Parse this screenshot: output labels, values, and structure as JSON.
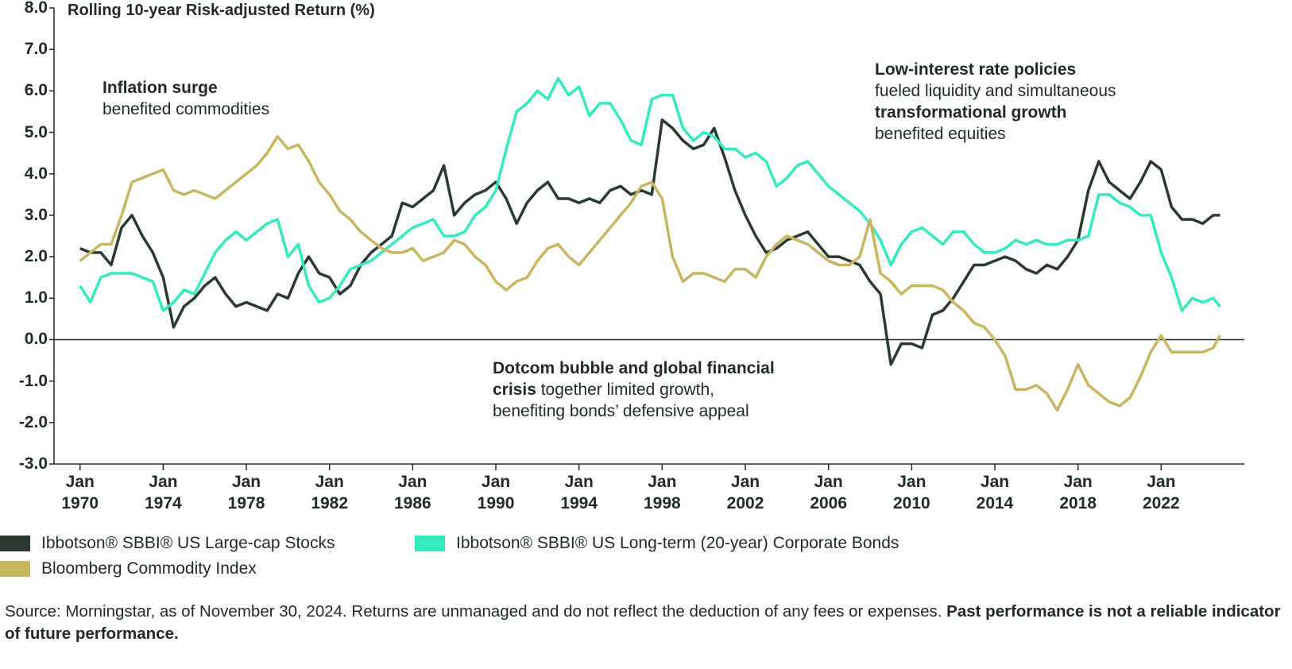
{
  "chart_data": {
    "type": "line",
    "y_axis_title": "Rolling 10-year Risk-adjusted Return (%)",
    "x": [
      "1970-01",
      "1970-07",
      "1971-01",
      "1971-07",
      "1972-01",
      "1972-07",
      "1973-01",
      "1973-07",
      "1974-01",
      "1974-07",
      "1975-01",
      "1975-07",
      "1976-01",
      "1976-07",
      "1977-01",
      "1977-07",
      "1978-01",
      "1978-07",
      "1979-01",
      "1979-07",
      "1980-01",
      "1980-07",
      "1981-01",
      "1981-07",
      "1982-01",
      "1982-07",
      "1983-01",
      "1983-07",
      "1984-01",
      "1984-07",
      "1985-01",
      "1985-07",
      "1986-01",
      "1986-07",
      "1987-01",
      "1987-07",
      "1988-01",
      "1988-07",
      "1989-01",
      "1989-07",
      "1990-01",
      "1990-07",
      "1991-01",
      "1991-07",
      "1992-01",
      "1992-07",
      "1993-01",
      "1993-07",
      "1994-01",
      "1994-07",
      "1995-01",
      "1995-07",
      "1996-01",
      "1996-07",
      "1997-01",
      "1997-07",
      "1998-01",
      "1998-07",
      "1999-01",
      "1999-07",
      "2000-01",
      "2000-07",
      "2001-01",
      "2001-07",
      "2002-01",
      "2002-07",
      "2003-01",
      "2003-07",
      "2004-01",
      "2004-07",
      "2005-01",
      "2005-07",
      "2006-01",
      "2006-07",
      "2007-01",
      "2007-07",
      "2008-01",
      "2008-07",
      "2009-01",
      "2009-07",
      "2010-01",
      "2010-07",
      "2011-01",
      "2011-07",
      "2012-01",
      "2012-07",
      "2013-01",
      "2013-07",
      "2014-01",
      "2014-07",
      "2015-01",
      "2015-07",
      "2016-01",
      "2016-07",
      "2017-01",
      "2017-07",
      "2018-01",
      "2018-07",
      "2019-01",
      "2019-07",
      "2020-01",
      "2020-07",
      "2021-01",
      "2021-07",
      "2022-01",
      "2022-07",
      "2023-01",
      "2023-07",
      "2024-01",
      "2024-07",
      "2024-11"
    ],
    "series": [
      {
        "name": "Ibbotson® SBBI® US Large-cap Stocks",
        "color": "#2b3a31",
        "values": [
          2.2,
          2.1,
          2.1,
          1.8,
          2.7,
          3.0,
          2.5,
          2.1,
          1.5,
          0.3,
          0.8,
          1.0,
          1.3,
          1.5,
          1.1,
          0.8,
          0.9,
          0.8,
          0.7,
          1.1,
          1.0,
          1.6,
          2.0,
          1.6,
          1.5,
          1.1,
          1.3,
          1.8,
          2.1,
          2.3,
          2.5,
          3.3,
          3.2,
          3.4,
          3.6,
          4.2,
          3.0,
          3.3,
          3.5,
          3.6,
          3.8,
          3.4,
          2.8,
          3.3,
          3.6,
          3.8,
          3.4,
          3.4,
          3.3,
          3.4,
          3.3,
          3.6,
          3.7,
          3.5,
          3.6,
          3.5,
          5.3,
          5.1,
          4.8,
          4.6,
          4.7,
          5.1,
          4.4,
          3.6,
          3.0,
          2.5,
          2.1,
          2.2,
          2.4,
          2.5,
          2.6,
          2.3,
          2.0,
          2.0,
          1.9,
          1.8,
          1.4,
          1.1,
          -0.6,
          -0.1,
          -0.1,
          -0.2,
          0.6,
          0.7,
          1.0,
          1.4,
          1.8,
          1.8,
          1.9,
          2.0,
          1.9,
          1.7,
          1.6,
          1.8,
          1.7,
          2.0,
          2.4,
          3.6,
          4.3,
          3.8,
          3.6,
          3.4,
          3.8,
          4.3,
          4.1,
          3.2,
          2.9,
          2.9,
          2.8,
          3.0,
          3.0
        ]
      },
      {
        "name": "Ibbotson® SBBI® US Long-term (20-year) Corporate Bonds",
        "color": "#33ebbe",
        "values": [
          1.3,
          0.9,
          1.5,
          1.6,
          1.6,
          1.6,
          1.5,
          1.4,
          0.7,
          0.9,
          1.2,
          1.1,
          1.6,
          2.1,
          2.4,
          2.6,
          2.4,
          2.6,
          2.8,
          2.9,
          2.0,
          2.3,
          1.3,
          0.9,
          1.0,
          1.3,
          1.7,
          1.8,
          1.9,
          2.1,
          2.3,
          2.5,
          2.7,
          2.8,
          2.9,
          2.5,
          2.5,
          2.6,
          3.0,
          3.2,
          3.6,
          4.6,
          5.5,
          5.7,
          6.0,
          5.8,
          6.3,
          5.9,
          6.1,
          5.4,
          5.7,
          5.7,
          5.3,
          4.8,
          4.7,
          5.8,
          5.9,
          5.9,
          5.1,
          4.8,
          5.0,
          4.9,
          4.6,
          4.6,
          4.4,
          4.5,
          4.3,
          3.7,
          3.9,
          4.2,
          4.3,
          4.0,
          3.7,
          3.5,
          3.3,
          3.1,
          2.8,
          2.4,
          1.8,
          2.3,
          2.6,
          2.7,
          2.5,
          2.3,
          2.6,
          2.6,
          2.3,
          2.1,
          2.1,
          2.2,
          2.4,
          2.3,
          2.4,
          2.3,
          2.3,
          2.4,
          2.4,
          2.5,
          3.5,
          3.5,
          3.3,
          3.2,
          3.0,
          3.0,
          2.1,
          1.5,
          0.7,
          1.0,
          0.9,
          1.0,
          0.8
        ]
      },
      {
        "name": "Bloomberg Commodity Index",
        "color": "#c8b560",
        "values": [
          1.9,
          2.1,
          2.3,
          2.3,
          3.0,
          3.8,
          3.9,
          4.0,
          4.1,
          3.6,
          3.5,
          3.6,
          3.5,
          3.4,
          3.6,
          3.8,
          4.0,
          4.2,
          4.5,
          4.9,
          4.6,
          4.7,
          4.3,
          3.8,
          3.5,
          3.1,
          2.9,
          2.6,
          2.4,
          2.2,
          2.1,
          2.1,
          2.2,
          1.9,
          2.0,
          2.1,
          2.4,
          2.3,
          2.0,
          1.8,
          1.4,
          1.2,
          1.4,
          1.5,
          1.9,
          2.2,
          2.3,
          2.0,
          1.8,
          2.1,
          2.4,
          2.7,
          3.0,
          3.3,
          3.7,
          3.8,
          3.4,
          2.0,
          1.4,
          1.6,
          1.6,
          1.5,
          1.4,
          1.7,
          1.7,
          1.5,
          2.0,
          2.3,
          2.5,
          2.4,
          2.3,
          2.1,
          1.9,
          1.8,
          1.8,
          2.0,
          2.9,
          1.6,
          1.4,
          1.1,
          1.3,
          1.3,
          1.3,
          1.2,
          0.9,
          0.7,
          0.4,
          0.3,
          0.0,
          -0.4,
          -1.2,
          -1.2,
          -1.1,
          -1.3,
          -1.7,
          -1.2,
          -0.6,
          -1.1,
          -1.3,
          -1.5,
          -1.6,
          -1.4,
          -0.9,
          -0.3,
          0.1,
          -0.3,
          -0.3,
          -0.3,
          -0.3,
          -0.2,
          0.1
        ]
      }
    ],
    "xlim": [
      "1968-10",
      "2026-01"
    ],
    "xticks": [
      {
        "value": "1970-01",
        "label": "Jan 1970"
      },
      {
        "value": "1974-01",
        "label": "Jan 1974"
      },
      {
        "value": "1978-01",
        "label": "Jan 1978"
      },
      {
        "value": "1982-01",
        "label": "Jan 1982"
      },
      {
        "value": "1986-01",
        "label": "Jan 1986"
      },
      {
        "value": "1990-01",
        "label": "Jan 1990"
      },
      {
        "value": "1994-01",
        "label": "Jan 1994"
      },
      {
        "value": "1998-01",
        "label": "Jan 1998"
      },
      {
        "value": "2002-01",
        "label": "Jan 2002"
      },
      {
        "value": "2006-01",
        "label": "Jan 2006"
      },
      {
        "value": "2010-01",
        "label": "Jan 2010"
      },
      {
        "value": "2014-01",
        "label": "Jan 2014"
      },
      {
        "value": "2018-01",
        "label": "Jan 2018"
      },
      {
        "value": "2022-01",
        "label": "Jan 2022"
      }
    ],
    "ylim": [
      -3,
      8
    ],
    "yticks": [
      {
        "value": 8,
        "label": "8.0"
      },
      {
        "value": 7,
        "label": "7.0"
      },
      {
        "value": 6,
        "label": "6.0"
      },
      {
        "value": 5,
        "label": "5.0"
      },
      {
        "value": 4,
        "label": "4.0"
      },
      {
        "value": 3,
        "label": "3.0"
      },
      {
        "value": 2,
        "label": "2.0"
      },
      {
        "value": 1,
        "label": "1.0"
      },
      {
        "value": 0,
        "label": "0.0"
      },
      {
        "value": -1,
        "label": "-1.0"
      },
      {
        "value": -2,
        "label": "-2.0"
      },
      {
        "value": -3,
        "label": "-3.0"
      }
    ],
    "grid": false,
    "annotations": [
      {
        "lines": [
          [
            {
              "text": "Inflation surge",
              "bold": true
            }
          ],
          [
            {
              "text": "benefited commodities",
              "bold": false
            }
          ]
        ]
      },
      {
        "lines": [
          [
            {
              "text": "Low-interest rate policies",
              "bold": true
            }
          ],
          [
            {
              "text": "fueled liquidity and simultaneous",
              "bold": false
            }
          ],
          [
            {
              "text": "transformational growth",
              "bold": true
            }
          ],
          [
            {
              "text": "benefited equities",
              "bold": false
            }
          ]
        ]
      },
      {
        "lines": [
          [
            {
              "text": "Dotcom bubble and global financial",
              "bold": true
            }
          ],
          [
            {
              "text": "crisis",
              "bold": true
            },
            {
              "text": " together limited growth,",
              "bold": false
            }
          ],
          [
            {
              "text": "benefiting bonds’ defensive appeal",
              "bold": false
            }
          ]
        ]
      }
    ],
    "source": {
      "text": "Source: Morningstar, as of November 30, 2024. Returns are unmanaged and do not reflect the deduction of any fees or expenses. ",
      "bold_text": "Past performance is not a reliable indicator of future performance."
    }
  }
}
